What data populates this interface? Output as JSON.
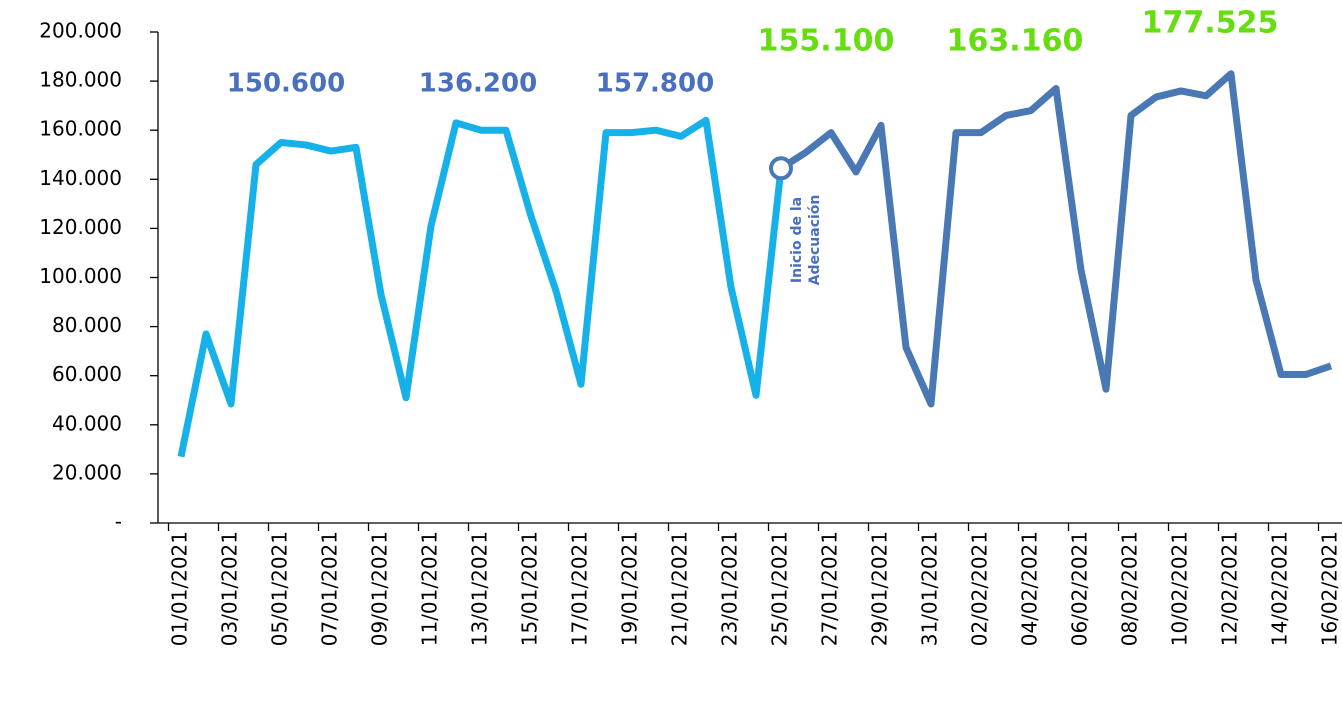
{
  "chart_data": {
    "type": "line",
    "categories": [
      "01/01/2021",
      null,
      "03/01/2021",
      null,
      "05/01/2021",
      null,
      "07/01/2021",
      null,
      "09/01/2021",
      null,
      "11/01/2021",
      null,
      "13/01/2021",
      null,
      "15/01/2021",
      null,
      "17/01/2021",
      null,
      "19/01/2021",
      null,
      "21/01/2021",
      null,
      "23/01/2021",
      null,
      "25/01/2021",
      null,
      "27/01/2021",
      null,
      "29/01/2021",
      null,
      "31/01/2021",
      null,
      "02/02/2021",
      null,
      "04/02/2021",
      null,
      "06/02/2021",
      null,
      "08/02/2021",
      null,
      "10/02/2021",
      null,
      "12/02/2021",
      null,
      "14/02/2021",
      null,
      "16/02/2021"
    ],
    "series": [
      {
        "color": "#17b1ea",
        "values": [
          27000,
          77000,
          48500,
          146000,
          155000,
          154000,
          151500,
          153000,
          93000,
          51000,
          121000,
          163000,
          160000,
          160000,
          125000,
          94500,
          56500,
          159000,
          159000,
          160000,
          157500,
          164000,
          96000,
          52000,
          144500,
          null,
          null,
          null,
          null,
          null,
          null,
          null,
          null,
          null,
          null,
          null,
          null,
          null,
          null,
          null,
          null,
          null,
          null,
          null,
          null,
          null,
          null
        ]
      },
      {
        "color": "#4a78b4",
        "values": [
          null,
          null,
          null,
          null,
          null,
          null,
          null,
          null,
          null,
          null,
          null,
          null,
          null,
          null,
          null,
          null,
          null,
          null,
          null,
          null,
          null,
          null,
          null,
          null,
          144500,
          151000,
          159000,
          143000,
          162000,
          71500,
          48500,
          159000,
          159000,
          166000,
          168000,
          177000,
          103000,
          54500,
          166000,
          173500,
          176000,
          174000,
          183000,
          99000,
          60500,
          60500,
          64000
        ]
      }
    ],
    "ylim": [
      0,
      200000
    ],
    "yticks": [
      {
        "value": 0,
        "label": "-"
      },
      {
        "value": 20000,
        "label": "20.000"
      },
      {
        "value": 40000,
        "label": "40.000"
      },
      {
        "value": 60000,
        "label": "60.000"
      },
      {
        "value": 80000,
        "label": "80.000"
      },
      {
        "value": 100000,
        "label": "100.000"
      },
      {
        "value": 120000,
        "label": "120.000"
      },
      {
        "value": 140000,
        "label": "140.000"
      },
      {
        "value": 160000,
        "label": "160.000"
      },
      {
        "value": 180000,
        "label": "180.000"
      },
      {
        "value": 200000,
        "label": "200.000"
      }
    ],
    "annotations": [
      {
        "text": "150.600",
        "color": "#4a6fc0"
      },
      {
        "text": "136.200",
        "color": "#4a6fc0"
      },
      {
        "text": "157.800",
        "color": "#4a6fc0"
      },
      {
        "text": "155.100",
        "color": "#66dd11"
      },
      {
        "text": "163.160",
        "color": "#66dd11"
      },
      {
        "text": "177.525",
        "color": "#66dd11"
      }
    ],
    "note_lines": [
      "Inicio de la",
      "Adecuación"
    ],
    "grid": false
  }
}
